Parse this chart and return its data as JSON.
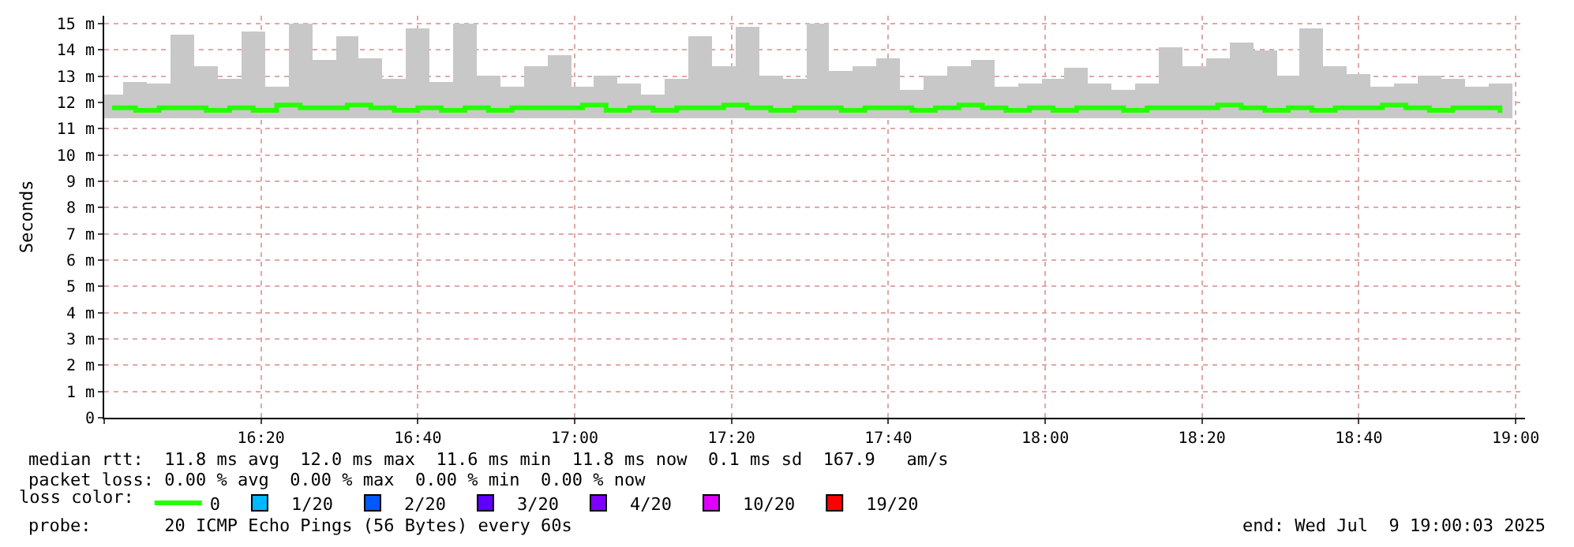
{
  "chart_data": {
    "type": "bar",
    "ylabel": "Seconds",
    "x": [
      16.0167,
      16.0667,
      16.1167,
      16.1667,
      16.2167,
      16.2667,
      16.3167,
      16.3667,
      16.4167,
      16.4667,
      16.5167,
      16.5667,
      16.6167,
      16.6667,
      16.7167,
      16.7667,
      16.8167,
      16.8667,
      16.9167,
      16.9667,
      17.0167,
      17.0667,
      17.1167,
      17.1667,
      17.2167,
      17.2667,
      17.3167,
      17.3667,
      17.4167,
      17.4667,
      17.5167,
      17.5667,
      17.6167,
      17.6667,
      17.7167,
      17.7667,
      17.8167,
      17.8667,
      17.9167,
      17.9667,
      18.0167,
      18.0667,
      18.1167,
      18.1667,
      18.2167,
      18.2667,
      18.3167,
      18.3667,
      18.4167,
      18.4667,
      18.5167,
      18.5667,
      18.6167,
      18.6667,
      18.7167,
      18.7667,
      18.8167,
      18.8667,
      18.9167,
      18.9667
    ],
    "series": [
      {
        "color": "#c8c8c8",
        "base": [
          11.4,
          11.4,
          11.4,
          11.4,
          11.4,
          11.4,
          11.4,
          11.4,
          11.4,
          11.4,
          11.4,
          11.4,
          11.4,
          11.4,
          11.4,
          11.4,
          11.4,
          11.4,
          11.4,
          11.4,
          11.4,
          11.4,
          11.4,
          11.4,
          11.4,
          11.4,
          11.4,
          11.4,
          11.4,
          11.4,
          11.4,
          11.4,
          11.4,
          11.4,
          11.4,
          11.4,
          11.4,
          11.4,
          11.4,
          11.4,
          11.4,
          11.4,
          11.4,
          11.4,
          11.4,
          11.4,
          11.4,
          11.4,
          11.4,
          11.4,
          11.4,
          11.4,
          11.4,
          11.4,
          11.4,
          11.4,
          11.4,
          11.4,
          11.4,
          11.4
        ],
        "values": [
          0.9,
          1.4,
          1.3,
          3.2,
          2.0,
          1.5,
          3.3,
          1.2,
          3.6,
          2.2,
          3.1,
          2.3,
          1.5,
          3.4,
          1.4,
          3.6,
          1.6,
          1.2,
          2.0,
          2.4,
          1.2,
          1.6,
          1.3,
          0.9,
          1.5,
          3.1,
          2.0,
          3.5,
          1.6,
          1.5,
          3.6,
          1.8,
          2.0,
          2.3,
          1.1,
          1.6,
          2.0,
          2.2,
          1.2,
          1.3,
          1.5,
          1.9,
          1.3,
          1.1,
          1.3,
          2.7,
          2.0,
          2.3,
          2.9,
          2.6,
          1.6,
          3.4,
          2.0,
          1.7,
          1.2,
          1.3,
          1.6,
          1.5,
          1.2,
          1.3
        ]
      },
      {
        "type": "step",
        "name": "0",
        "color": "#26ff00",
        "values": [
          11.8,
          11.7,
          11.8,
          11.8,
          11.7,
          11.8,
          11.7,
          11.9,
          11.8,
          11.8,
          11.9,
          11.8,
          11.7,
          11.8,
          11.7,
          11.8,
          11.7,
          11.8,
          11.8,
          11.8,
          11.9,
          11.7,
          11.8,
          11.7,
          11.8,
          11.8,
          11.9,
          11.8,
          11.7,
          11.8,
          11.8,
          11.7,
          11.8,
          11.8,
          11.7,
          11.8,
          11.9,
          11.8,
          11.7,
          11.8,
          11.7,
          11.8,
          11.8,
          11.7,
          11.8,
          11.8,
          11.8,
          11.9,
          11.8,
          11.7,
          11.8,
          11.7,
          11.8,
          11.8,
          11.9,
          11.8,
          11.7,
          11.8,
          11.8,
          11.6
        ]
      },
      {
        "type": "step",
        "name": "1/20",
        "color": "#00b8ff",
        "values": [
          null,
          null,
          null,
          null,
          null,
          null,
          null,
          null,
          null,
          null,
          null,
          null,
          null,
          null,
          null,
          null,
          null,
          null,
          null,
          null,
          null,
          null,
          null,
          null,
          null,
          null,
          null,
          null,
          null,
          null,
          null,
          null,
          null,
          null,
          null,
          null,
          null,
          null,
          null,
          null,
          null,
          null,
          null,
          null,
          null,
          null,
          null,
          null,
          null,
          null,
          null,
          null,
          null,
          null,
          null,
          null,
          null,
          null,
          null,
          null
        ]
      },
      {
        "type": "step",
        "name": "2/20",
        "color": "#0059ff",
        "values": [
          null,
          null,
          null,
          null,
          null,
          null,
          null,
          null,
          null,
          null,
          null,
          null,
          null,
          null,
          null,
          null,
          null,
          null,
          null,
          null,
          null,
          null,
          null,
          null,
          null,
          null,
          null,
          null,
          null,
          null,
          null,
          null,
          null,
          null,
          null,
          null,
          null,
          null,
          null,
          null,
          null,
          null,
          null,
          null,
          null,
          null,
          null,
          null,
          null,
          null,
          null,
          null,
          null,
          null,
          null,
          null,
          null,
          null,
          null,
          null
        ]
      },
      {
        "type": "step",
        "name": "3/20",
        "color": "#5e00ff",
        "values": [
          null,
          null,
          null,
          null,
          null,
          null,
          null,
          null,
          null,
          null,
          null,
          null,
          null,
          null,
          null,
          null,
          null,
          null,
          null,
          null,
          null,
          null,
          null,
          null,
          null,
          null,
          null,
          null,
          null,
          null,
          null,
          null,
          null,
          null,
          null,
          null,
          null,
          null,
          null,
          null,
          null,
          null,
          null,
          null,
          null,
          null,
          null,
          null,
          null,
          null,
          null,
          null,
          null,
          null,
          null,
          null,
          null,
          null,
          null,
          null
        ]
      },
      {
        "type": "step",
        "name": "4/20",
        "color": "#7e00ff",
        "values": [
          null,
          null,
          null,
          null,
          null,
          null,
          null,
          null,
          null,
          null,
          null,
          null,
          null,
          null,
          null,
          null,
          null,
          null,
          null,
          null,
          null,
          null,
          null,
          null,
          null,
          null,
          null,
          null,
          null,
          null,
          null,
          null,
          null,
          null,
          null,
          null,
          null,
          null,
          null,
          null,
          null,
          null,
          null,
          null,
          null,
          null,
          null,
          null,
          null,
          null,
          null,
          null,
          null,
          null,
          null,
          null,
          null,
          null,
          null,
          null
        ]
      },
      {
        "type": "step",
        "name": "10/20",
        "color": "#dd00ff",
        "values": [
          null,
          null,
          null,
          null,
          null,
          null,
          null,
          null,
          null,
          null,
          null,
          null,
          null,
          null,
          null,
          null,
          null,
          null,
          null,
          null,
          null,
          null,
          null,
          null,
          null,
          null,
          null,
          null,
          null,
          null,
          null,
          null,
          null,
          null,
          null,
          null,
          null,
          null,
          null,
          null,
          null,
          null,
          null,
          null,
          null,
          null,
          null,
          null,
          null,
          null,
          null,
          null,
          null,
          null,
          null,
          null,
          null,
          null,
          null,
          null
        ]
      },
      {
        "type": "step",
        "name": "19/20",
        "color": "#ff0000",
        "values": [
          null,
          null,
          null,
          null,
          null,
          null,
          null,
          null,
          null,
          null,
          null,
          null,
          null,
          null,
          null,
          null,
          null,
          null,
          null,
          null,
          null,
          null,
          null,
          null,
          null,
          null,
          null,
          null,
          null,
          null,
          null,
          null,
          null,
          null,
          null,
          null,
          null,
          null,
          null,
          null,
          null,
          null,
          null,
          null,
          null,
          null,
          null,
          null,
          null,
          null,
          null,
          null,
          null,
          null,
          null,
          null,
          null,
          null,
          null,
          null
        ]
      }
    ],
    "legend_title": "loss color:",
    "legend": "bottom",
    "xlim": [
      16,
      19.02
    ],
    "xticks": [
      {
        "value": 16,
        "label": null
      },
      {
        "value": 16.3333,
        "label": "16:20"
      },
      {
        "value": 16.6667,
        "label": "16:40"
      },
      {
        "value": 17,
        "label": "17:00"
      },
      {
        "value": 17.3333,
        "label": "17:20"
      },
      {
        "value": 17.6667,
        "label": "17:40"
      },
      {
        "value": 18,
        "label": "18:00"
      },
      {
        "value": 18.3333,
        "label": "18:20"
      },
      {
        "value": 18.6667,
        "label": "18:40"
      },
      {
        "value": 19,
        "label": "19:00"
      }
    ],
    "ylim": [
      0,
      15.3
    ],
    "yticks": [
      0,
      {
        "value": 1,
        "label": "1 m"
      },
      {
        "value": 2,
        "label": "2 m"
      },
      {
        "value": 3,
        "label": "3 m"
      },
      {
        "value": 4,
        "label": "4 m"
      },
      {
        "value": 5,
        "label": "5 m"
      },
      {
        "value": 6,
        "label": "6 m"
      },
      {
        "value": 7,
        "label": "7 m"
      },
      {
        "value": 8,
        "label": "8 m"
      },
      {
        "value": 9,
        "label": "9 m"
      },
      {
        "value": 10,
        "label": "10 m"
      },
      {
        "value": 11,
        "label": "11 m"
      },
      {
        "value": 12,
        "label": "12 m"
      },
      {
        "value": 13,
        "label": "13 m"
      },
      {
        "value": 14,
        "label": "14 m"
      },
      {
        "value": 15,
        "label": "15 m"
      }
    ],
    "grid": true,
    "annotations": [
      "median rtt:  11.8 ms avg  12.0 ms max  11.6 ms min  11.8 ms now  0.1 ms sd  167.9   am/s",
      "packet loss: 0.00 % avg  0.00 % max  0.00 % min  0.00 % now",
      "probe:       20 ICMP Echo Pings (56 Bytes) every 60s",
      "end: Wed Jul  9 19:00:03 2025"
    ]
  }
}
